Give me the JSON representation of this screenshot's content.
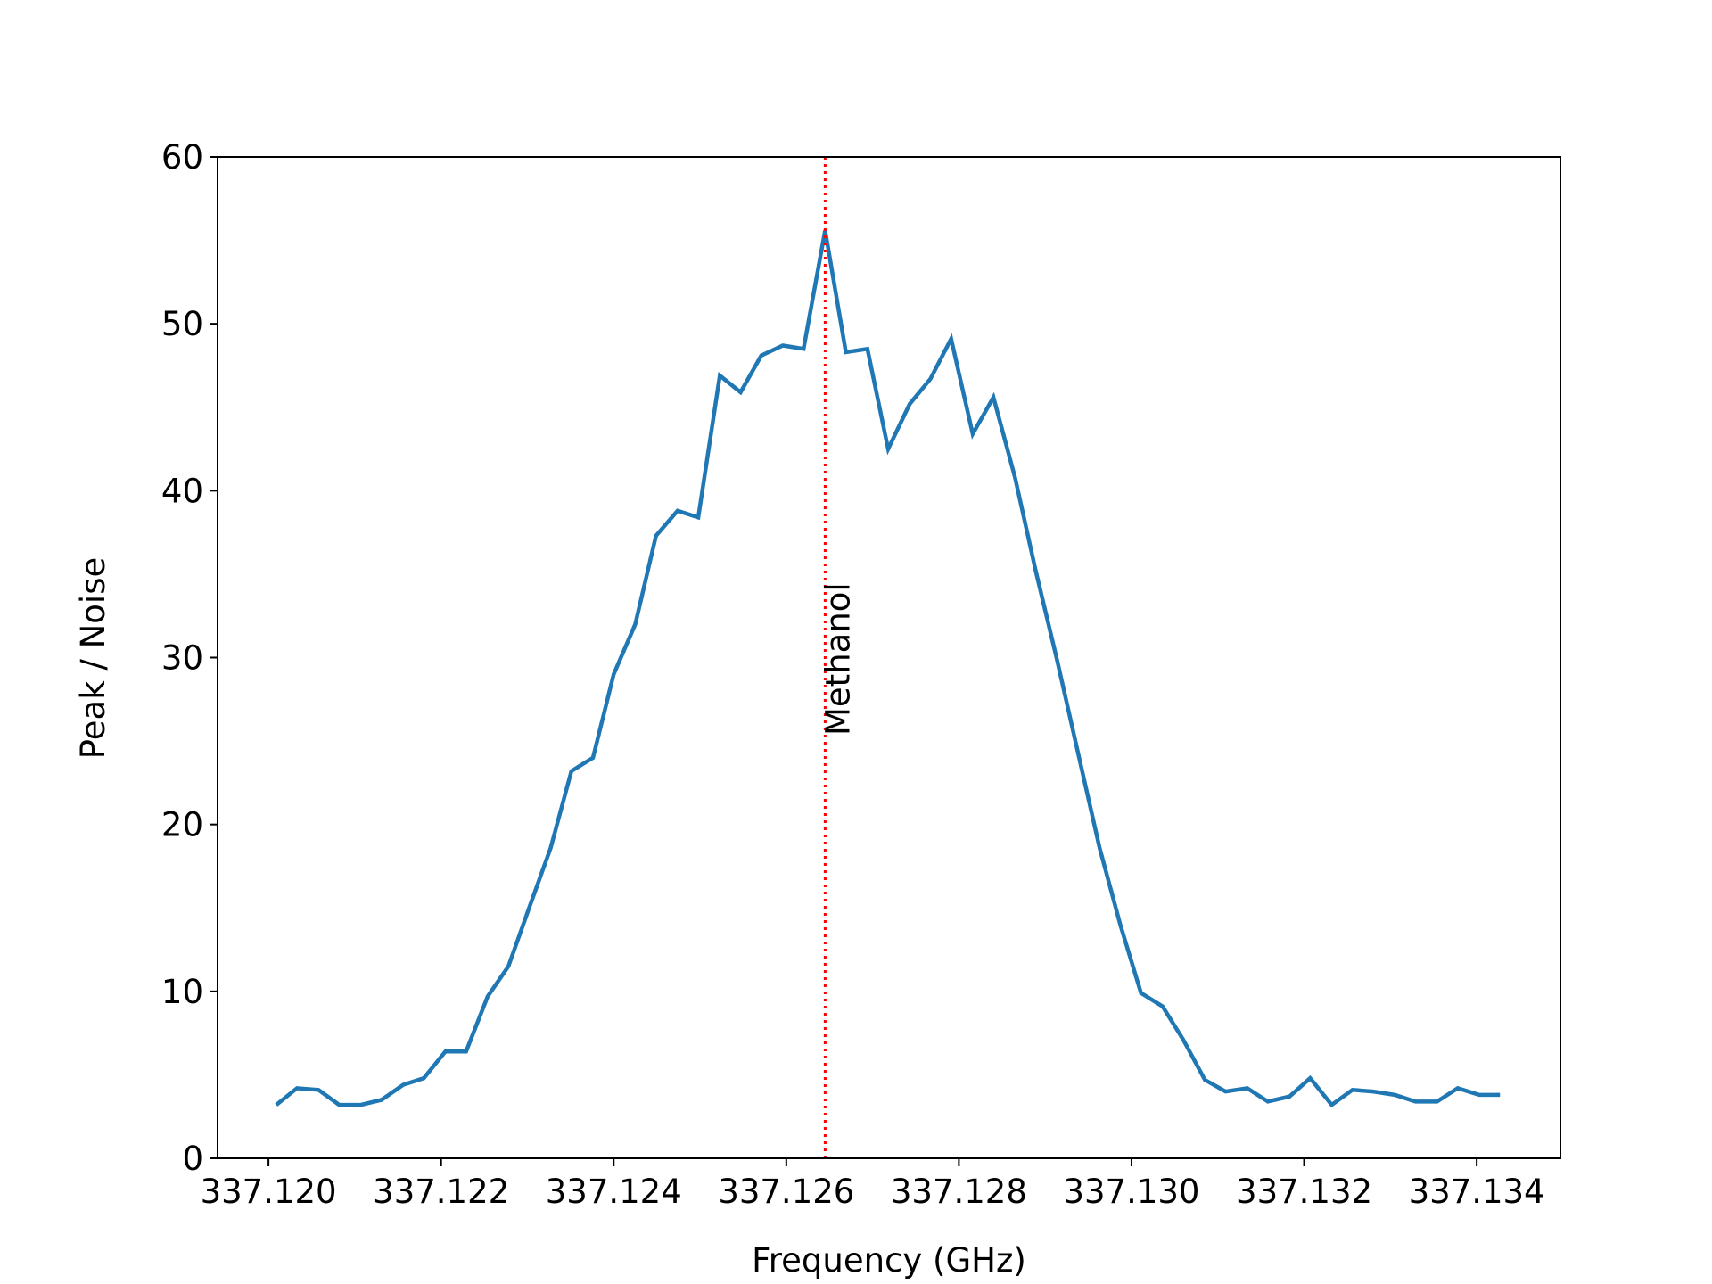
{
  "chart_data": {
    "type": "line",
    "xlabel": "Frequency (GHz)",
    "ylabel": "Peak / Noise",
    "x": [
      337.12009,
      337.12033,
      337.12058,
      337.12082,
      337.12107,
      337.12131,
      337.12156,
      337.1218,
      337.12205,
      337.12229,
      337.12254,
      337.12278,
      337.12302,
      337.12327,
      337.12351,
      337.12376,
      337.124,
      337.12425,
      337.12449,
      337.12474,
      337.12498,
      337.12523,
      337.12547,
      337.12571,
      337.12596,
      337.1262,
      337.12645,
      337.12669,
      337.12694,
      337.12718,
      337.12743,
      337.12767,
      337.12791,
      337.12816,
      337.1284,
      337.12865,
      337.12889,
      337.12914,
      337.12938,
      337.12963,
      337.12987,
      337.13011,
      337.13036,
      337.1306,
      337.13085,
      337.13109,
      337.13134,
      337.13158,
      337.13183,
      337.13207,
      337.13232,
      337.13256,
      337.1328,
      337.13305,
      337.13329,
      337.13354,
      337.13378,
      337.13403,
      337.13427
    ],
    "series": [
      {
        "color": "#1f77b4",
        "values": [
          3.2,
          4.2,
          4.1,
          3.2,
          3.2,
          3.5,
          4.4,
          4.8,
          6.4,
          6.4,
          9.7,
          11.5,
          15.0,
          18.6,
          23.2,
          24.0,
          29.0,
          32.0,
          37.3,
          38.8,
          38.4,
          46.9,
          45.9,
          48.1,
          48.7,
          48.5,
          55.6,
          48.3,
          48.5,
          42.5,
          45.2,
          46.7,
          49.1,
          43.4,
          45.6,
          40.8,
          35.2,
          29.8,
          24.3,
          18.6,
          14.0,
          9.9,
          9.1,
          7.1,
          4.7,
          4.0,
          4.2,
          3.4,
          3.7,
          4.8,
          3.2,
          4.1,
          4.0,
          3.8,
          3.4,
          3.4,
          4.2,
          3.8,
          3.8
        ]
      }
    ],
    "annotations": [
      {
        "text": "Methanol",
        "x": 337.12645,
        "color": "#ff0000"
      }
    ],
    "xlim": [
      337.11941,
      337.13497
    ],
    "ylim": [
      0,
      60
    ],
    "xticks": [
      {
        "value": 337.12,
        "label": "337.120"
      },
      {
        "value": 337.122,
        "label": "337.122"
      },
      {
        "value": 337.124,
        "label": "337.124"
      },
      {
        "value": 337.126,
        "label": "337.126"
      },
      {
        "value": 337.128,
        "label": "337.128"
      },
      {
        "value": 337.13,
        "label": "337.130"
      },
      {
        "value": 337.132,
        "label": "337.132"
      },
      {
        "value": 337.134,
        "label": "337.134"
      }
    ],
    "yticks": [
      0,
      10,
      20,
      30,
      40,
      50,
      60
    ]
  }
}
